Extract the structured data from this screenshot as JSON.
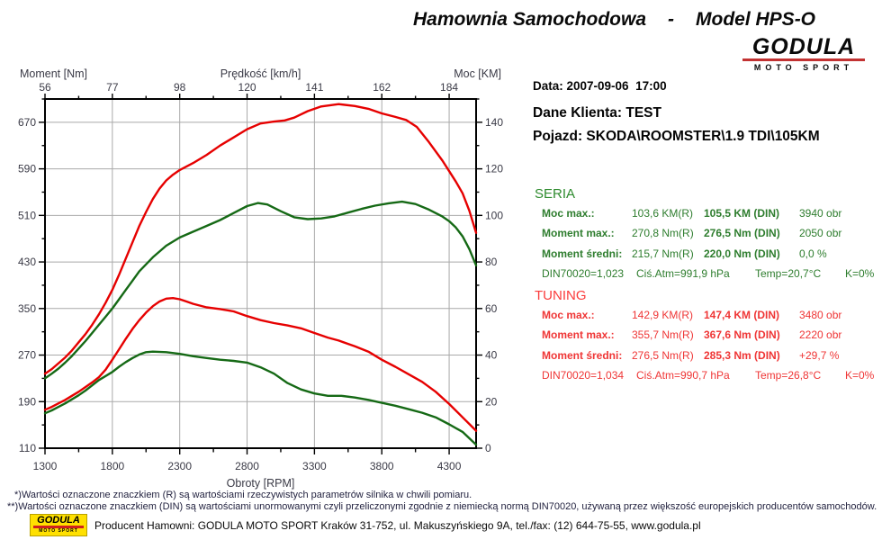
{
  "header": {
    "title_left": "Hamownia Samochodowa",
    "title_sep": "-",
    "title_right": "Model HPS-O",
    "logo_name": "GODULA",
    "logo_sub": "MOTO SPORT"
  },
  "info": {
    "date_line": "Data: 2007-09-06  17:00",
    "client_line": "Dane Klienta: TEST",
    "vehicle_line": "Pojazd: SKODA\\ROOMSTER\\1.9 TDI\\105KM"
  },
  "seria": {
    "header": "SERIA",
    "rows": [
      {
        "label": "Moc max.:",
        "r": "103,6 KM(R)",
        "din": "105,5 KM (DIN)",
        "extra": "3940 obr"
      },
      {
        "label": "Moment max.:",
        "r": "270,8 Nm(R)",
        "din": "276,5 Nm (DIN)",
        "extra": "2050 obr"
      },
      {
        "label": "Moment średni:",
        "r": "215,7 Nm(R)",
        "din": "220,0 Nm (DIN)",
        "extra": "0,0 %"
      }
    ],
    "footer": {
      "p1": "DIN70020=1,023",
      "p2": "Ciś.Atm=991,9 hPa",
      "p3": "Temp=20,7°C",
      "p4": "K=0%"
    }
  },
  "tuning": {
    "header": "TUNING",
    "rows": [
      {
        "label": "Moc max.:",
        "r": "142,9 KM(R)",
        "din": "147,4 KM (DIN)",
        "extra": "3480 obr"
      },
      {
        "label": "Moment max.:",
        "r": "355,7 Nm(R)",
        "din": "367,6 Nm (DIN)",
        "extra": "2220 obr"
      },
      {
        "label": "Moment średni:",
        "r": "276,5 Nm(R)",
        "din": "285,3 Nm (DIN)",
        "extra": "+29,7 %"
      }
    ],
    "footer": {
      "p1": "DIN70020=1,034",
      "p2": "Ciś.Atm=990,7 hPa",
      "p3": "Temp=26,8°C",
      "p4": "K=0%"
    }
  },
  "footnotes": {
    "line1": "*)Wartości oznaczone znaczkiem (R) są wartościami rzeczywistych parametrów silnika w chwili pomiaru.",
    "line2": "**)Wartości oznaczone znaczkiem (DIN) są wartościami unormowanymi czyli przeliczonymi zgodnie z niemiecką normą DIN70020, używaną przez większość europejskich producentów samochodów.",
    "producer": "Producent Hamowni: GODULA MOTO SPORT Kraków 31-752, ul. Makuszyńskiego 9A, tel./fax: (12) 644-75-55, www.godula.pl",
    "producer_logo_name": "GODULA",
    "producer_logo_sub": "MOTO SPORT"
  },
  "colors": {
    "curve_tuning": "#e60000",
    "curve_seria": "#156915",
    "grid": "#a9a9a9",
    "axis_text": "#3a3a46",
    "seria_text": "#2e7d2e",
    "tuning_text": "#ef3535",
    "logo_yellow": "#ffe000",
    "logo_red": "#c23232"
  },
  "chart_data": {
    "type": "line",
    "grid": true,
    "axes": {
      "bottom": {
        "label": "Obroty [RPM]",
        "min": 1300,
        "max": 4500,
        "majors": [
          1300,
          1800,
          2300,
          2800,
          3300,
          3800,
          4300
        ],
        "minor_step": 250
      },
      "top": {
        "label": "Prędkość [km/h]",
        "ticks": [
          "56",
          "77",
          "98",
          "120",
          "141",
          "162",
          "184"
        ]
      },
      "left": {
        "label": "Moment [Nm]",
        "min": 110,
        "max": 710,
        "majors": [
          110,
          190,
          270,
          350,
          430,
          510,
          590,
          670
        ],
        "minor_step": 40
      },
      "right": {
        "label": "Moc [KM]",
        "min": 0,
        "max": 150,
        "majors": [
          0,
          20,
          40,
          60,
          80,
          100,
          120,
          140
        ],
        "minor_step": 10
      }
    },
    "series": [
      {
        "name": "tuning-moc",
        "legend": "TUNING Moc [KM]",
        "axis": "right",
        "color": "#e60000",
        "points": [
          [
            1300,
            32
          ],
          [
            1350,
            34
          ],
          [
            1400,
            36.5
          ],
          [
            1450,
            39
          ],
          [
            1500,
            42
          ],
          [
            1550,
            45.5
          ],
          [
            1600,
            49
          ],
          [
            1650,
            53
          ],
          [
            1700,
            57.5
          ],
          [
            1750,
            62.5
          ],
          [
            1800,
            68
          ],
          [
            1850,
            74.5
          ],
          [
            1900,
            81.5
          ],
          [
            1950,
            88.5
          ],
          [
            2000,
            95.5
          ],
          [
            2050,
            101.5
          ],
          [
            2100,
            107
          ],
          [
            2150,
            111.5
          ],
          [
            2200,
            115
          ],
          [
            2250,
            117.5
          ],
          [
            2300,
            119.5
          ],
          [
            2400,
            122.5
          ],
          [
            2500,
            126
          ],
          [
            2600,
            130
          ],
          [
            2700,
            133.5
          ],
          [
            2800,
            137
          ],
          [
            2900,
            139.5
          ],
          [
            3000,
            140.3
          ],
          [
            3080,
            140.8
          ],
          [
            3150,
            142
          ],
          [
            3250,
            144.8
          ],
          [
            3350,
            146.8
          ],
          [
            3480,
            147.8
          ],
          [
            3600,
            147
          ],
          [
            3700,
            145.8
          ],
          [
            3800,
            143.8
          ],
          [
            3900,
            142.3
          ],
          [
            3980,
            141
          ],
          [
            4060,
            138
          ],
          [
            4150,
            131.5
          ],
          [
            4250,
            123.5
          ],
          [
            4300,
            119
          ],
          [
            4350,
            114.5
          ],
          [
            4400,
            109.5
          ],
          [
            4450,
            102
          ],
          [
            4500,
            92.5
          ]
        ]
      },
      {
        "name": "seria-moc",
        "legend": "SERIA Moc [KM]",
        "axis": "right",
        "color": "#156915",
        "points": [
          [
            1300,
            30
          ],
          [
            1350,
            32
          ],
          [
            1400,
            34.2
          ],
          [
            1450,
            36.8
          ],
          [
            1500,
            39.6
          ],
          [
            1550,
            42.8
          ],
          [
            1600,
            46
          ],
          [
            1650,
            49.5
          ],
          [
            1700,
            53
          ],
          [
            1750,
            56.5
          ],
          [
            1800,
            60
          ],
          [
            1850,
            64
          ],
          [
            1900,
            68
          ],
          [
            1950,
            72
          ],
          [
            2000,
            76
          ],
          [
            2100,
            82
          ],
          [
            2200,
            87
          ],
          [
            2300,
            90.5
          ],
          [
            2400,
            93
          ],
          [
            2500,
            95.5
          ],
          [
            2600,
            98
          ],
          [
            2700,
            101
          ],
          [
            2800,
            104
          ],
          [
            2880,
            105.3
          ],
          [
            2950,
            104.7
          ],
          [
            3050,
            101.8
          ],
          [
            3150,
            99.2
          ],
          [
            3250,
            98.4
          ],
          [
            3350,
            98.7
          ],
          [
            3450,
            99.6
          ],
          [
            3550,
            101.2
          ],
          [
            3650,
            102.8
          ],
          [
            3750,
            104.2
          ],
          [
            3850,
            105.2
          ],
          [
            3950,
            105.9
          ],
          [
            4050,
            104.9
          ],
          [
            4150,
            102.5
          ],
          [
            4250,
            99.5
          ],
          [
            4300,
            97.5
          ],
          [
            4350,
            94.8
          ],
          [
            4400,
            91
          ],
          [
            4450,
            85.5
          ],
          [
            4500,
            78.5
          ]
        ]
      },
      {
        "name": "tuning-moment",
        "legend": "TUNING Moment [Nm]",
        "axis": "left",
        "color": "#e60000",
        "points": [
          [
            1300,
            176
          ],
          [
            1350,
            181
          ],
          [
            1400,
            187
          ],
          [
            1450,
            193
          ],
          [
            1500,
            200
          ],
          [
            1550,
            207
          ],
          [
            1600,
            215
          ],
          [
            1650,
            223
          ],
          [
            1700,
            232
          ],
          [
            1750,
            245
          ],
          [
            1800,
            262
          ],
          [
            1850,
            280
          ],
          [
            1900,
            298
          ],
          [
            1950,
            315
          ],
          [
            2000,
            330
          ],
          [
            2050,
            343
          ],
          [
            2100,
            354
          ],
          [
            2150,
            362
          ],
          [
            2200,
            367
          ],
          [
            2250,
            368
          ],
          [
            2300,
            366
          ],
          [
            2350,
            362
          ],
          [
            2400,
            358
          ],
          [
            2500,
            352
          ],
          [
            2600,
            349
          ],
          [
            2700,
            345
          ],
          [
            2800,
            337
          ],
          [
            2900,
            330
          ],
          [
            3000,
            325
          ],
          [
            3100,
            321
          ],
          [
            3200,
            316
          ],
          [
            3300,
            308
          ],
          [
            3400,
            300
          ],
          [
            3480,
            295
          ],
          [
            3600,
            285
          ],
          [
            3700,
            276
          ],
          [
            3800,
            262
          ],
          [
            3900,
            250
          ],
          [
            4000,
            237
          ],
          [
            4100,
            224
          ],
          [
            4200,
            207
          ],
          [
            4300,
            186
          ],
          [
            4400,
            163
          ],
          [
            4500,
            140
          ]
        ]
      },
      {
        "name": "seria-moment",
        "legend": "SERIA Moment [Nm]",
        "axis": "left",
        "color": "#156915",
        "points": [
          [
            1300,
            170
          ],
          [
            1350,
            175
          ],
          [
            1400,
            181
          ],
          [
            1450,
            187
          ],
          [
            1500,
            194
          ],
          [
            1550,
            201
          ],
          [
            1600,
            209
          ],
          [
            1650,
            218
          ],
          [
            1700,
            227
          ],
          [
            1750,
            234
          ],
          [
            1800,
            241
          ],
          [
            1850,
            250
          ],
          [
            1900,
            258
          ],
          [
            1950,
            265
          ],
          [
            2000,
            271
          ],
          [
            2050,
            275
          ],
          [
            2100,
            276
          ],
          [
            2200,
            275
          ],
          [
            2300,
            272
          ],
          [
            2400,
            268
          ],
          [
            2500,
            265
          ],
          [
            2600,
            262
          ],
          [
            2700,
            260
          ],
          [
            2800,
            257
          ],
          [
            2900,
            249
          ],
          [
            3000,
            238
          ],
          [
            3100,
            222
          ],
          [
            3200,
            211
          ],
          [
            3300,
            204
          ],
          [
            3400,
            200
          ],
          [
            3500,
            200
          ],
          [
            3600,
            197
          ],
          [
            3700,
            193
          ],
          [
            3800,
            188
          ],
          [
            3900,
            183
          ],
          [
            4000,
            177
          ],
          [
            4100,
            171
          ],
          [
            4200,
            163
          ],
          [
            4300,
            151
          ],
          [
            4400,
            138
          ],
          [
            4500,
            116
          ]
        ]
      }
    ]
  }
}
